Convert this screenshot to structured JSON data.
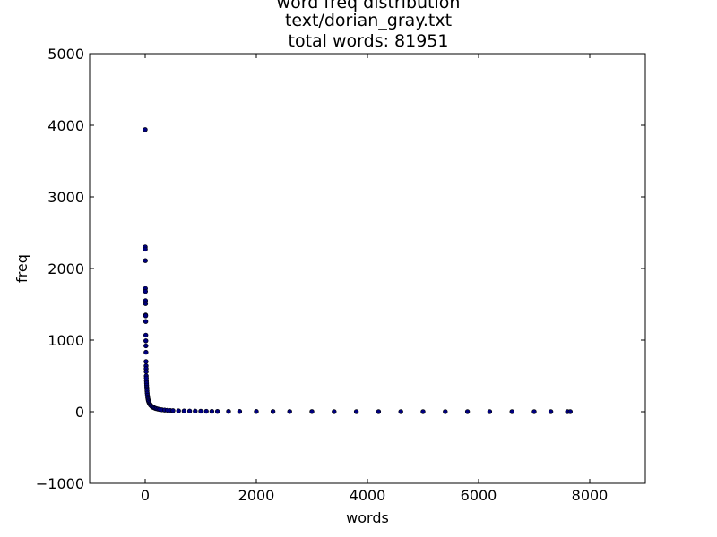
{
  "chart_data": {
    "type": "scatter",
    "title": [
      "word freq distribution",
      "text/dorian_gray.txt",
      "total words: 81951"
    ],
    "xlabel": "words",
    "ylabel": "freq",
    "xlim": [
      -1000,
      9000
    ],
    "ylim": [
      -1000,
      5000
    ],
    "xticks": [
      0,
      2000,
      4000,
      6000,
      8000
    ],
    "xtick_labels": [
      "0",
      "2000",
      "4000",
      "6000",
      "8000"
    ],
    "yticks": [
      -1000,
      0,
      1000,
      2000,
      3000,
      4000,
      5000
    ],
    "ytick_labels": [
      "−1000",
      "0",
      "1000",
      "2000",
      "3000",
      "4000",
      "5000"
    ],
    "grid": false,
    "legend": "none",
    "marker_color": "#000080",
    "series": [
      {
        "x": [
          0,
          1,
          2,
          3,
          4,
          5,
          6,
          7,
          8,
          9,
          10,
          11,
          12,
          13,
          14,
          15,
          16,
          17,
          18,
          19,
          20,
          22,
          24,
          26,
          28,
          30,
          33,
          36,
          40,
          45,
          50,
          55,
          60,
          70,
          80,
          90,
          100,
          120,
          140,
          160,
          180,
          200,
          230,
          260,
          300,
          350,
          400,
          450,
          500,
          600,
          700,
          800,
          900,
          1000,
          1100,
          1200,
          1300,
          1500,
          1700,
          2000,
          2300,
          2600,
          3000,
          3400,
          3800,
          4200,
          4600,
          5000,
          5400,
          5800,
          6200,
          6600,
          7000,
          7300,
          7600,
          7650
        ],
        "y": [
          3940,
          2300,
          2270,
          2110,
          1720,
          1680,
          1550,
          1510,
          1350,
          1340,
          1260,
          1070,
          990,
          920,
          830,
          700,
          640,
          600,
          560,
          500,
          470,
          430,
          400,
          370,
          340,
          320,
          290,
          260,
          230,
          200,
          180,
          160,
          145,
          125,
          110,
          98,
          88,
          72,
          62,
          55,
          48,
          43,
          37,
          32,
          27,
          23,
          20,
          17,
          15,
          12,
          10,
          9,
          8,
          7,
          6,
          5,
          4,
          4,
          3,
          3,
          2,
          2,
          2,
          1,
          1,
          1,
          1,
          1,
          1,
          1,
          1,
          1,
          1,
          1,
          1,
          1
        ]
      }
    ]
  }
}
